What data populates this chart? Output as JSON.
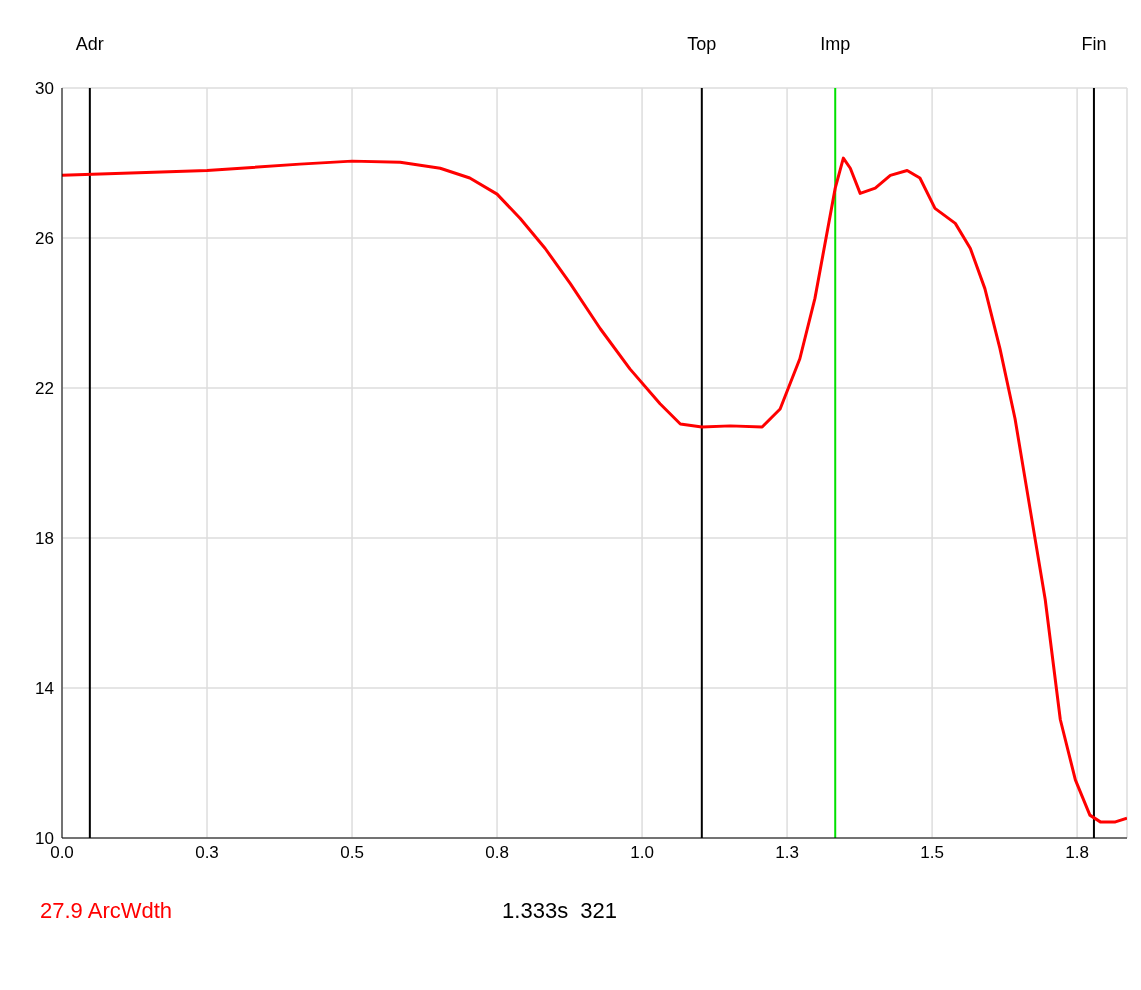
{
  "chart_data": {
    "type": "line",
    "x": [
      0,
      0.25,
      0.41,
      0.5,
      0.583,
      0.652,
      0.703,
      0.75,
      0.79,
      0.833,
      0.876,
      0.928,
      0.979,
      1.031,
      1.066,
      1.103,
      1.152,
      1.207,
      1.238,
      1.272,
      1.298,
      1.333,
      1.347,
      1.359,
      1.376,
      1.402,
      1.428,
      1.457,
      1.479,
      1.505,
      1.54,
      1.566,
      1.591,
      1.617,
      1.643,
      1.669,
      1.695,
      1.721,
      1.747,
      1.772,
      1.79,
      1.816,
      1.836
    ],
    "series": [
      {
        "color": "#ff0000",
        "values": [
          27.67,
          27.8,
          27.97,
          28.05,
          28.02,
          27.86,
          27.6,
          27.17,
          26.52,
          25.72,
          24.79,
          23.58,
          22.51,
          21.58,
          21.04,
          20.96,
          20.99,
          20.96,
          21.44,
          22.78,
          24.39,
          27.33,
          28.13,
          27.86,
          27.19,
          27.33,
          27.67,
          27.8,
          27.6,
          26.79,
          26.39,
          25.72,
          24.65,
          23.05,
          21.18,
          18.77,
          16.36,
          13.16,
          11.55,
          10.61,
          10.43,
          10.43,
          10.53
        ]
      }
    ],
    "xlim": [
      0,
      1.836
    ],
    "xticks": [
      {
        "value": 0,
        "label": "0.0"
      },
      {
        "value": 0.25,
        "label": "0.3"
      },
      {
        "value": 0.5,
        "label": "0.5"
      },
      {
        "value": 0.75,
        "label": "0.8"
      },
      {
        "value": 1,
        "label": "1.0"
      },
      {
        "value": 1.25,
        "label": "1.3"
      },
      {
        "value": 1.5,
        "label": "1.5"
      },
      {
        "value": 1.75,
        "label": "1.8"
      }
    ],
    "ylim": [
      10,
      30
    ],
    "yticks": [
      10,
      14,
      18,
      22,
      26,
      30
    ],
    "grid": true,
    "marker": "none",
    "line_style": "solid",
    "ref_lines": [
      {
        "axis": "x",
        "value": 0.048,
        "label": "Adr",
        "color": "#000000"
      },
      {
        "axis": "x",
        "value": 1.103,
        "label": "Top",
        "color": "#000000"
      },
      {
        "axis": "x",
        "value": 1.333,
        "label": "Imp",
        "color": "#00e000"
      },
      {
        "axis": "x",
        "value": 1.779,
        "label": "Fin",
        "color": "#000000"
      }
    ],
    "annotations": [
      "27.9 ArcWdth",
      "1.333s  321"
    ]
  }
}
